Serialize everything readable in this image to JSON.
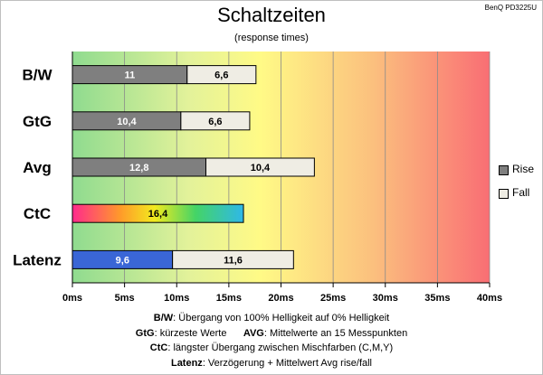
{
  "header": {
    "title": "Schaltzeiten",
    "subtitle": "(response times)",
    "model": "BenQ PD3225U"
  },
  "chart_data": {
    "type": "bar",
    "orientation": "horizontal",
    "stacked": true,
    "title": "Schaltzeiten",
    "subtitle": "(response times)",
    "categories": [
      "B/W",
      "GtG",
      "Avg",
      "CtC",
      "Latenz"
    ],
    "series": [
      {
        "name": "Rise",
        "values": [
          11,
          10.4,
          12.8,
          null,
          9.6
        ],
        "labels": [
          "11",
          "10,4",
          "12,8",
          "",
          "9,6"
        ],
        "color": "#7f7f7f"
      },
      {
        "name": "Fall",
        "values": [
          6.6,
          6.6,
          10.4,
          null,
          11.6
        ],
        "labels": [
          "6,6",
          "6,6",
          "10,4",
          "",
          "11,6"
        ],
        "color": "#efede4"
      },
      {
        "name": "",
        "values": [
          null,
          null,
          null,
          16.4,
          null
        ],
        "labels": [
          "",
          "",
          "",
          "16,4",
          ""
        ],
        "color": "gradient"
      }
    ],
    "special_colors": {
      "Latenz": "#3a66d6"
    },
    "x_ticks": [
      "0ms",
      "5ms",
      "10ms",
      "15ms",
      "20ms",
      "25ms",
      "30ms",
      "35ms",
      "40ms"
    ],
    "xlim": [
      0,
      40
    ],
    "background": "green-yellow-red gradient",
    "grid": true,
    "legend_position": "right"
  },
  "footnotes": [
    {
      "key": "B/W",
      "text": ":  Übergang von 100% Helligkeit auf 0% Helligkeit"
    },
    {
      "key": "GtG",
      "text": ": kürzeste  Werte",
      "key2": "AVG",
      "text2": ": Mittelwerte  an 15 Messpunkten"
    },
    {
      "key": "CtC",
      "text": ": längster Übergang  zwischen Mischfarben (C,M,Y)"
    },
    {
      "key": "Latenz",
      "text": ": Verzögerung  + Mittelwert Avg rise/fall"
    }
  ]
}
